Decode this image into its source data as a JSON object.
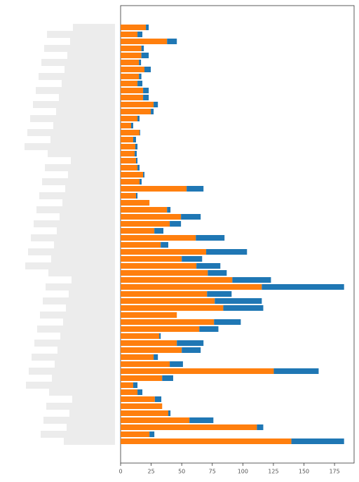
{
  "chart_data": {
    "type": "barh-stacked",
    "categories": [
      null,
      null,
      null,
      null,
      null,
      null,
      null,
      null,
      null,
      null,
      null,
      null,
      null,
      null,
      null,
      null,
      null,
      null,
      null,
      null,
      null,
      null,
      null,
      null,
      null,
      null,
      null,
      null,
      null,
      null,
      null,
      null,
      null,
      null,
      null,
      null,
      null,
      null,
      null,
      null,
      null,
      null,
      null,
      null,
      null,
      null,
      null,
      null,
      null,
      null,
      null,
      null,
      null,
      null,
      null,
      null,
      null,
      null,
      null,
      null
    ],
    "series": [
      {
        "color": "#ff7f0e",
        "values": [
          20.7,
          13.8,
          38,
          17,
          17,
          15,
          19.5,
          15,
          13.8,
          18.4,
          18.4,
          27,
          24.7,
          13.8,
          8.6,
          15.5,
          10.3,
          12,
          11.5,
          12.6,
          13.8,
          18.4,
          15.5,
          54,
          12.6,
          23.6,
          38,
          49.4,
          40.2,
          27.6,
          61.5,
          32.8,
          70,
          50,
          62,
          71.3,
          91.4,
          115.5,
          70.7,
          77,
          84,
          46,
          76.4,
          64.4,
          31.6,
          46,
          50,
          27,
          40.2,
          125.3,
          34,
          10.3,
          13.8,
          28,
          34,
          39,
          56.3,
          111.5,
          23.6,
          139.7
        ]
      },
      {
        "color": "#1f77b4",
        "values": [
          2.3,
          4,
          8,
          2,
          6,
          1.7,
          5.2,
          2,
          4,
          4.6,
          4.6,
          3.5,
          2.3,
          1.7,
          1.7,
          0.5,
          2.3,
          1.8,
          1.7,
          1.2,
          1.7,
          1.1,
          1.7,
          13.8,
          1.2,
          0,
          2.8,
          16.1,
          9.2,
          7.4,
          23.5,
          6.2,
          33.4,
          16.7,
          19.6,
          15.5,
          31.6,
          67.3,
          20.1,
          38.5,
          32.7,
          0,
          21.9,
          15.6,
          1.2,
          21.8,
          15.5,
          3.5,
          10.8,
          36.7,
          9,
          3.5,
          4,
          5.3,
          0,
          1.8,
          19.6,
          5.2,
          4,
          43.1
        ]
      }
    ],
    "xlim": [
      0,
      191
    ],
    "xticks": [
      0,
      25,
      50,
      75,
      100,
      125,
      150,
      175
    ]
  }
}
